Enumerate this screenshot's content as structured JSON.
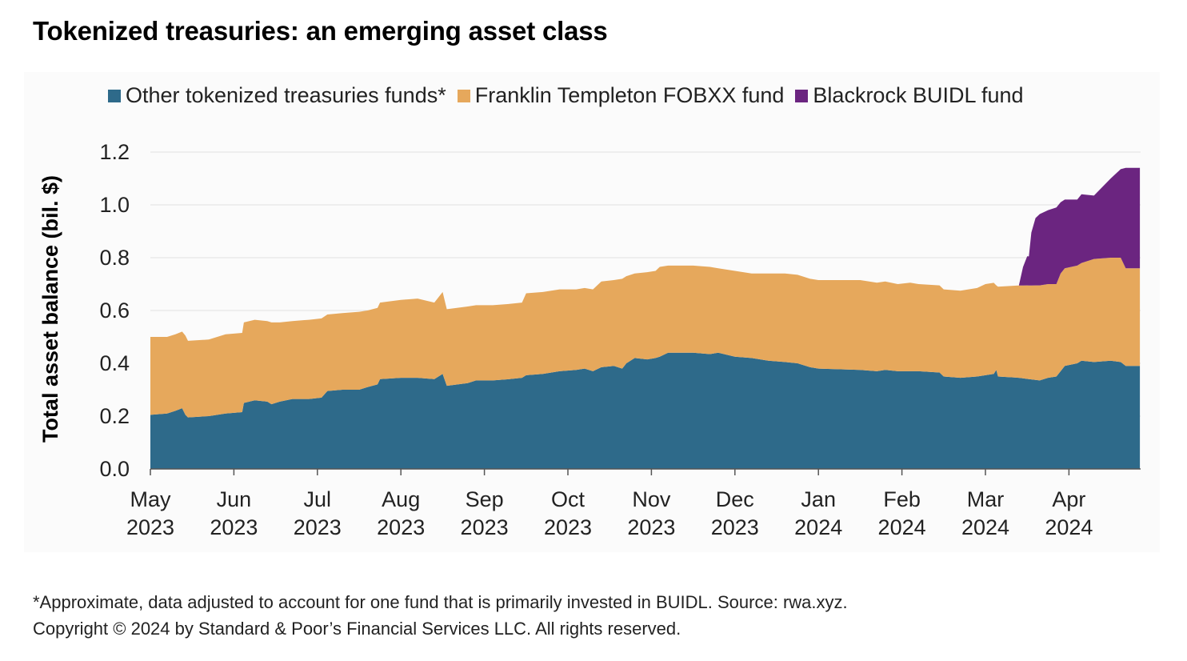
{
  "title": "Tokenized treasuries: an emerging asset class",
  "legend": {
    "other": "Other tokenized treasuries funds*",
    "franklin": "Franklin Templeton FOBXX fund",
    "blackrock": "Blackrock BUIDL fund"
  },
  "colors": {
    "other": "#2e6a8a",
    "franklin": "#e6a85c",
    "blackrock": "#6b2580",
    "grid": "#e0e0e0",
    "text": "#222222"
  },
  "footnote": {
    "line1": "*Approximate, data adjusted to account for one fund that is primarily invested in BUIDL. Source: rwa.xyz.",
    "line2": "Copyright © 2024 by Standard & Poor’s Financial Services LLC. All rights reserved."
  },
  "chart_data": {
    "type": "area",
    "stacked": true,
    "title": "Tokenized treasuries: an emerging asset class",
    "xlabel": "",
    "ylabel": "Total asset balance (bil. $)",
    "ylim": [
      0,
      1.2
    ],
    "yticks": [
      "0.0",
      "0.2",
      "0.4",
      "0.6",
      "0.8",
      "1.0",
      "1.2"
    ],
    "x_range": [
      0,
      11.85
    ],
    "x_unit": "months since May 1, 2023",
    "x_ticks": [
      {
        "x": 0,
        "month": "May",
        "year": "2023"
      },
      {
        "x": 1,
        "month": "Jun",
        "year": "2023"
      },
      {
        "x": 2,
        "month": "Jul",
        "year": "2023"
      },
      {
        "x": 3,
        "month": "Aug",
        "year": "2023"
      },
      {
        "x": 4,
        "month": "Sep",
        "year": "2023"
      },
      {
        "x": 5,
        "month": "Oct",
        "year": "2023"
      },
      {
        "x": 6,
        "month": "Nov",
        "year": "2023"
      },
      {
        "x": 7,
        "month": "Dec",
        "year": "2023"
      },
      {
        "x": 8,
        "month": "Jan",
        "year": "2024"
      },
      {
        "x": 9,
        "month": "Feb",
        "year": "2024"
      },
      {
        "x": 10,
        "month": "Mar",
        "year": "2024"
      },
      {
        "x": 11,
        "month": "Apr",
        "year": "2024"
      }
    ],
    "legend_position": "top",
    "series": [
      {
        "name": "Other tokenized treasuries funds*",
        "points": [
          [
            0,
            0.205
          ],
          [
            0.2,
            0.21
          ],
          [
            0.3,
            0.22
          ],
          [
            0.38,
            0.23
          ],
          [
            0.42,
            0.205
          ],
          [
            0.45,
            0.195
          ],
          [
            0.7,
            0.2
          ],
          [
            0.9,
            0.21
          ],
          [
            1.1,
            0.215
          ],
          [
            1.12,
            0.25
          ],
          [
            1.25,
            0.26
          ],
          [
            1.4,
            0.255
          ],
          [
            1.45,
            0.245
          ],
          [
            1.55,
            0.255
          ],
          [
            1.7,
            0.265
          ],
          [
            1.9,
            0.265
          ],
          [
            2.05,
            0.27
          ],
          [
            2.12,
            0.295
          ],
          [
            2.3,
            0.3
          ],
          [
            2.5,
            0.3
          ],
          [
            2.6,
            0.31
          ],
          [
            2.72,
            0.32
          ],
          [
            2.75,
            0.34
          ],
          [
            3.0,
            0.345
          ],
          [
            3.2,
            0.345
          ],
          [
            3.4,
            0.34
          ],
          [
            3.5,
            0.36
          ],
          [
            3.55,
            0.315
          ],
          [
            3.8,
            0.325
          ],
          [
            3.9,
            0.335
          ],
          [
            4.1,
            0.335
          ],
          [
            4.3,
            0.34
          ],
          [
            4.45,
            0.345
          ],
          [
            4.5,
            0.355
          ],
          [
            4.7,
            0.36
          ],
          [
            4.9,
            0.37
          ],
          [
            5.1,
            0.375
          ],
          [
            5.2,
            0.38
          ],
          [
            5.3,
            0.37
          ],
          [
            5.4,
            0.385
          ],
          [
            5.55,
            0.39
          ],
          [
            5.65,
            0.38
          ],
          [
            5.7,
            0.4
          ],
          [
            5.8,
            0.42
          ],
          [
            5.95,
            0.415
          ],
          [
            6.05,
            0.42
          ],
          [
            6.1,
            0.425
          ],
          [
            6.2,
            0.44
          ],
          [
            6.5,
            0.44
          ],
          [
            6.7,
            0.435
          ],
          [
            6.8,
            0.44
          ],
          [
            7.0,
            0.425
          ],
          [
            7.2,
            0.42
          ],
          [
            7.4,
            0.41
          ],
          [
            7.6,
            0.405
          ],
          [
            7.75,
            0.4
          ],
          [
            7.9,
            0.385
          ],
          [
            8.0,
            0.38
          ],
          [
            8.5,
            0.375
          ],
          [
            8.7,
            0.37
          ],
          [
            8.8,
            0.375
          ],
          [
            8.95,
            0.37
          ],
          [
            9.1,
            0.37
          ],
          [
            9.2,
            0.37
          ],
          [
            9.45,
            0.365
          ],
          [
            9.5,
            0.35
          ],
          [
            9.7,
            0.345
          ],
          [
            9.9,
            0.35
          ],
          [
            10.0,
            0.355
          ],
          [
            10.1,
            0.36
          ],
          [
            10.13,
            0.375
          ],
          [
            10.15,
            0.35
          ],
          [
            10.4,
            0.345
          ],
          [
            10.65,
            0.335
          ],
          [
            10.75,
            0.345
          ],
          [
            10.85,
            0.35
          ],
          [
            10.9,
            0.37
          ],
          [
            10.95,
            0.39
          ],
          [
            11.1,
            0.4
          ],
          [
            11.15,
            0.41
          ],
          [
            11.3,
            0.405
          ],
          [
            11.5,
            0.41
          ],
          [
            11.62,
            0.405
          ],
          [
            11.68,
            0.39
          ],
          [
            11.85,
            0.39
          ]
        ]
      },
      {
        "name": "Franklin Templeton FOBXX fund",
        "points": [
          [
            0,
            0.295
          ],
          [
            0.2,
            0.29
          ],
          [
            0.38,
            0.29
          ],
          [
            0.42,
            0.3
          ],
          [
            0.45,
            0.29
          ],
          [
            0.7,
            0.29
          ],
          [
            0.9,
            0.3
          ],
          [
            1.1,
            0.3
          ],
          [
            1.12,
            0.305
          ],
          [
            1.25,
            0.305
          ],
          [
            1.4,
            0.305
          ],
          [
            1.45,
            0.31
          ],
          [
            1.55,
            0.3
          ],
          [
            1.7,
            0.295
          ],
          [
            1.9,
            0.3
          ],
          [
            2.05,
            0.3
          ],
          [
            2.12,
            0.29
          ],
          [
            2.3,
            0.29
          ],
          [
            2.5,
            0.295
          ],
          [
            2.6,
            0.29
          ],
          [
            2.72,
            0.29
          ],
          [
            2.75,
            0.29
          ],
          [
            3.0,
            0.295
          ],
          [
            3.2,
            0.3
          ],
          [
            3.4,
            0.29
          ],
          [
            3.5,
            0.31
          ],
          [
            3.55,
            0.29
          ],
          [
            3.8,
            0.29
          ],
          [
            3.9,
            0.285
          ],
          [
            4.1,
            0.285
          ],
          [
            4.3,
            0.285
          ],
          [
            4.45,
            0.285
          ],
          [
            4.5,
            0.31
          ],
          [
            4.7,
            0.31
          ],
          [
            4.9,
            0.31
          ],
          [
            5.1,
            0.305
          ],
          [
            5.2,
            0.305
          ],
          [
            5.3,
            0.31
          ],
          [
            5.4,
            0.325
          ],
          [
            5.55,
            0.325
          ],
          [
            5.65,
            0.34
          ],
          [
            5.7,
            0.33
          ],
          [
            5.8,
            0.32
          ],
          [
            5.95,
            0.33
          ],
          [
            6.05,
            0.33
          ],
          [
            6.1,
            0.34
          ],
          [
            6.2,
            0.33
          ],
          [
            6.5,
            0.33
          ],
          [
            6.7,
            0.33
          ],
          [
            6.8,
            0.32
          ],
          [
            7.0,
            0.325
          ],
          [
            7.2,
            0.32
          ],
          [
            7.4,
            0.33
          ],
          [
            7.6,
            0.335
          ],
          [
            7.75,
            0.335
          ],
          [
            7.9,
            0.335
          ],
          [
            8.0,
            0.335
          ],
          [
            8.5,
            0.34
          ],
          [
            8.7,
            0.335
          ],
          [
            8.8,
            0.335
          ],
          [
            8.95,
            0.33
          ],
          [
            9.1,
            0.335
          ],
          [
            9.2,
            0.33
          ],
          [
            9.45,
            0.33
          ],
          [
            9.5,
            0.33
          ],
          [
            9.7,
            0.33
          ],
          [
            9.9,
            0.335
          ],
          [
            10.0,
            0.345
          ],
          [
            10.1,
            0.345
          ],
          [
            10.13,
            0.32
          ],
          [
            10.15,
            0.34
          ],
          [
            10.4,
            0.35
          ],
          [
            10.65,
            0.36
          ],
          [
            10.75,
            0.355
          ],
          [
            10.85,
            0.35
          ],
          [
            10.9,
            0.37
          ],
          [
            10.95,
            0.37
          ],
          [
            11.1,
            0.37
          ],
          [
            11.15,
            0.37
          ],
          [
            11.3,
            0.39
          ],
          [
            11.5,
            0.39
          ],
          [
            11.62,
            0.395
          ],
          [
            11.68,
            0.37
          ],
          [
            11.85,
            0.37
          ]
        ]
      },
      {
        "name": "Blackrock BUIDL fund",
        "points": [
          [
            10.15,
            0
          ],
          [
            10.4,
            0
          ],
          [
            10.45,
            0.07
          ],
          [
            10.5,
            0.11
          ],
          [
            10.52,
            0.11
          ],
          [
            10.55,
            0.2
          ],
          [
            10.6,
            0.255
          ],
          [
            10.65,
            0.27
          ],
          [
            10.75,
            0.28
          ],
          [
            10.85,
            0.29
          ],
          [
            10.9,
            0.27
          ],
          [
            10.95,
            0.26
          ],
          [
            11.1,
            0.25
          ],
          [
            11.15,
            0.26
          ],
          [
            11.3,
            0.24
          ],
          [
            11.5,
            0.3
          ],
          [
            11.62,
            0.335
          ],
          [
            11.68,
            0.38
          ],
          [
            11.85,
            0.38
          ]
        ]
      }
    ],
    "annotations": []
  }
}
